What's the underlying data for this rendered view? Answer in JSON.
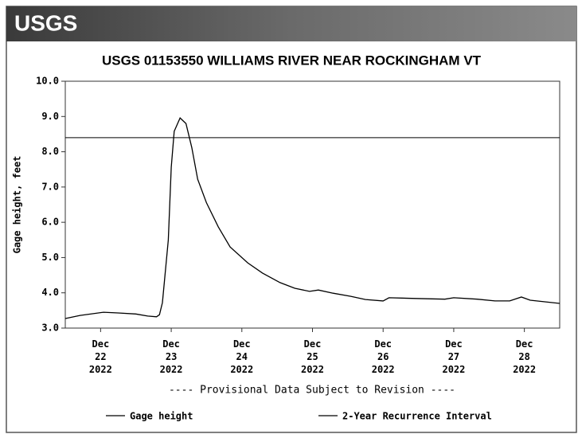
{
  "logo": "USGS",
  "chart_data": {
    "type": "line",
    "title": "USGS 01153550 WILLIAMS RIVER NEAR ROCKINGHAM VT",
    "y_label": "Gage height, feet",
    "annotation": "---- Provisional Data Subject to Revision ----",
    "x": [
      "2022-12-22T00:00",
      "2022-12-22T05:00",
      "2022-12-22T13:00",
      "2022-12-22T18:00",
      "2022-12-23T00:00",
      "2022-12-23T04:00",
      "2022-12-23T07:00",
      "2022-12-23T08:00",
      "2022-12-23T09:00",
      "2022-12-23T11:00",
      "2022-12-23T12:00",
      "2022-12-23T13:00",
      "2022-12-23T15:00",
      "2022-12-23T17:00",
      "2022-12-23T19:00",
      "2022-12-23T21:00",
      "2022-12-24T00:00",
      "2022-12-24T04:00",
      "2022-12-24T08:00",
      "2022-12-24T14:00",
      "2022-12-24T19:00",
      "2022-12-25T01:00",
      "2022-12-25T06:00",
      "2022-12-25T11:00",
      "2022-12-25T14:00",
      "2022-12-25T19:00",
      "2022-12-26T01:00",
      "2022-12-26T06:00",
      "2022-12-26T12:00",
      "2022-12-26T14:00",
      "2022-12-26T23:00",
      "2022-12-27T09:00",
      "2022-12-27T12:00",
      "2022-12-27T20:00",
      "2022-12-28T02:00",
      "2022-12-28T07:00",
      "2022-12-28T11:00",
      "2022-12-28T14:00",
      "2022-12-29T00:00"
    ],
    "series": [
      {
        "name": "Gage height",
        "color": "#000000",
        "values": [
          3.27,
          3.36,
          3.45,
          3.43,
          3.4,
          3.34,
          3.32,
          3.38,
          3.72,
          5.5,
          7.56,
          8.58,
          8.96,
          8.8,
          8.12,
          7.22,
          6.55,
          5.87,
          5.3,
          4.85,
          4.56,
          4.29,
          4.13,
          4.04,
          4.08,
          3.99,
          3.9,
          3.81,
          3.77,
          3.86,
          3.84,
          3.82,
          3.86,
          3.82,
          3.77,
          3.77,
          3.88,
          3.79,
          3.7
        ]
      }
    ],
    "reference_lines": [
      {
        "name": "2-Year Recurrence Interval",
        "value": 8.4,
        "color": "#000000"
      }
    ],
    "xlim": [
      "2022-12-22T00:00",
      "2022-12-29T00:00"
    ],
    "xticks": [
      {
        "value": "2022-12-22T12:00",
        "label": "Dec 22 2022"
      },
      {
        "value": "2022-12-23T12:00",
        "label": "Dec 23 2022"
      },
      {
        "value": "2022-12-24T12:00",
        "label": "Dec 24 2022"
      },
      {
        "value": "2022-12-25T12:00",
        "label": "Dec 25 2022"
      },
      {
        "value": "2022-12-26T12:00",
        "label": "Dec 26 2022"
      },
      {
        "value": "2022-12-27T12:00",
        "label": "Dec 27 2022"
      },
      {
        "value": "2022-12-28T12:00",
        "label": "Dec 28 2022"
      }
    ],
    "ylim": [
      3,
      10
    ],
    "yticks": [
      {
        "value": 3,
        "label": "3.0"
      },
      {
        "value": 4,
        "label": "4.0"
      },
      {
        "value": 5,
        "label": "5.0"
      },
      {
        "value": 6,
        "label": "6.0"
      },
      {
        "value": 7,
        "label": "7.0"
      },
      {
        "value": 8,
        "label": "8.0"
      },
      {
        "value": 9,
        "label": "9.0"
      },
      {
        "value": 10,
        "label": "10.0"
      }
    ],
    "grid": false
  }
}
